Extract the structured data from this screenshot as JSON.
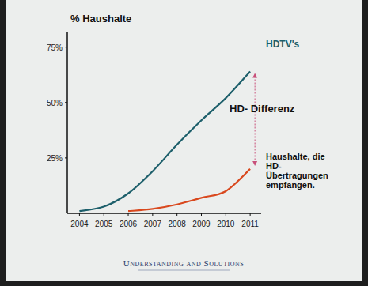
{
  "chart_data": {
    "type": "line",
    "y_label": "% Haushalte",
    "x": [
      2004,
      2005,
      2006,
      2007,
      2008,
      2009,
      2010,
      2011
    ],
    "xlim": [
      2003.5,
      2011.45
    ],
    "xticks": [
      2004,
      2005,
      2006,
      2007,
      2008,
      2009,
      2010,
      2011
    ],
    "ylim": [
      0,
      82
    ],
    "yticks": [
      {
        "value": 25,
        "label": "25%"
      },
      {
        "value": 50,
        "label": "50%"
      },
      {
        "value": 75,
        "label": "75%"
      }
    ],
    "grid": false,
    "series": [
      {
        "name": "HDTV's",
        "color": "#1d5f6b",
        "values": [
          1,
          3,
          9,
          19,
          31,
          42,
          52,
          64
        ]
      },
      {
        "name": "Haushalte, die HD-Übertragungen empfangen.",
        "color": "#d9481e",
        "values": [
          null,
          null,
          1,
          2,
          4,
          7,
          10,
          20
        ]
      }
    ],
    "annotations": [
      {
        "text": "HD- Differenz"
      }
    ]
  },
  "footer": "Understanding and Solutions"
}
